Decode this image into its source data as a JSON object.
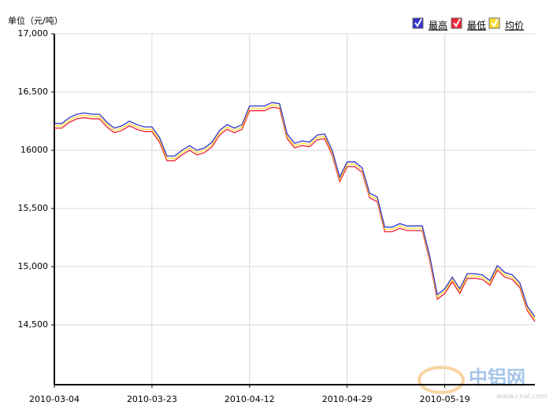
{
  "chart_data": {
    "type": "line",
    "y_axis_label": "单位（元/吨）",
    "categories": [
      "2010-03-04",
      null,
      null,
      null,
      null,
      null,
      null,
      null,
      null,
      null,
      null,
      null,
      null,
      "2010-03-23",
      null,
      null,
      null,
      null,
      null,
      null,
      null,
      null,
      null,
      null,
      null,
      null,
      "2010-04-12",
      null,
      null,
      null,
      null,
      null,
      null,
      null,
      null,
      null,
      null,
      null,
      null,
      "2010-04-29",
      null,
      null,
      null,
      null,
      null,
      null,
      null,
      null,
      null,
      null,
      null,
      null,
      "2010-05-19",
      null,
      null,
      null,
      null,
      null,
      null,
      null,
      null,
      null,
      null,
      null,
      null
    ],
    "series": [
      {
        "name": "最高",
        "color": "#3333cc",
        "values": [
          16230,
          16230,
          16280,
          16310,
          16320,
          16310,
          16310,
          16240,
          16190,
          16210,
          16250,
          16220,
          16200,
          16200,
          16110,
          15950,
          15950,
          16000,
          16040,
          16000,
          16020,
          16070,
          16170,
          16220,
          16190,
          16220,
          16380,
          16380,
          16380,
          16410,
          16400,
          16140,
          16060,
          16080,
          16070,
          16130,
          16140,
          16000,
          15770,
          15900,
          15900,
          15850,
          15630,
          15600,
          15340,
          15340,
          15370,
          15350,
          15350,
          15350,
          15090,
          14760,
          14810,
          14910,
          14810,
          14940,
          14940,
          14930,
          14880,
          15010,
          14950,
          14930,
          14860,
          14660,
          14570
        ]
      },
      {
        "name": "最低",
        "color": "#ee2233",
        "values": [
          16190,
          16190,
          16240,
          16270,
          16280,
          16270,
          16270,
          16200,
          16150,
          16170,
          16210,
          16180,
          16160,
          16160,
          16070,
          15910,
          15910,
          15960,
          16000,
          15960,
          15980,
          16030,
          16130,
          16180,
          16150,
          16180,
          16340,
          16340,
          16340,
          16370,
          16360,
          16100,
          16020,
          16040,
          16030,
          16090,
          16100,
          15960,
          15730,
          15860,
          15860,
          15810,
          15590,
          15560,
          15300,
          15300,
          15330,
          15310,
          15310,
          15310,
          15050,
          14720,
          14770,
          14870,
          14770,
          14900,
          14900,
          14890,
          14840,
          14970,
          14910,
          14890,
          14820,
          14620,
          14530
        ]
      },
      {
        "name": "均价",
        "color": "#ffdd33",
        "values": [
          16210,
          16210,
          16260,
          16290,
          16300,
          16290,
          16290,
          16220,
          16170,
          16190,
          16230,
          16200,
          16180,
          16180,
          16090,
          15930,
          15930,
          15980,
          16020,
          15980,
          16000,
          16050,
          16150,
          16200,
          16170,
          16200,
          16360,
          16360,
          16360,
          16390,
          16380,
          16120,
          16040,
          16060,
          16050,
          16110,
          16120,
          15980,
          15750,
          15880,
          15880,
          15830,
          15610,
          15580,
          15320,
          15320,
          15350,
          15330,
          15330,
          15330,
          15070,
          14740,
          14790,
          14890,
          14790,
          14920,
          14920,
          14910,
          14860,
          14990,
          14930,
          14910,
          14840,
          14640,
          14550
        ]
      }
    ],
    "ylim": [
      14000,
      17000
    ],
    "yticks": [
      {
        "value": 14500,
        "label": "14,500"
      },
      {
        "value": 15000,
        "label": "15,000"
      },
      {
        "value": 15500,
        "label": "15,500"
      },
      {
        "value": 16000,
        "label": "16000"
      },
      {
        "value": 16500,
        "label": "16,500"
      },
      {
        "value": 17000,
        "label": "17,000"
      }
    ],
    "grid": true
  },
  "watermark": {
    "brand": "中铝网",
    "url": "www.cnal.com"
  }
}
